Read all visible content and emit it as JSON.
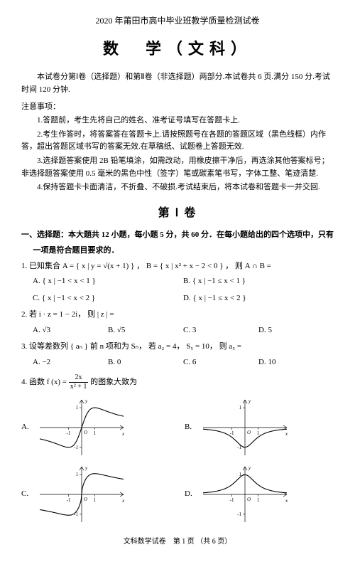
{
  "header": {
    "exam_title": "2020 年莆田市高中毕业班教学质量检测试卷",
    "subject": "数　学（文科）"
  },
  "intro": "本试卷分第Ⅰ卷（选择题）和第Ⅱ卷（非选择题）两部分.本试卷共 6 页.满分 150 分.考试时间 120 分钟.",
  "notice": {
    "title": "注意事项：",
    "items": [
      "1.答题前，考生先将自己的姓名、准考证号填写在答题卡上.",
      "2.考生作答时，将答案答在答题卡上.请按照题号在各题的答题区域（黑色线框）内作答，超出答题区域书写的答案无效.在草稿纸、试题卷上答题无效.",
      "3.选择题答案使用 2B 铅笔填涂，如需改动，用橡皮擦干净后，再选涂其他答案标号；非选择题答案使用 0.5 毫米的黑色中性（签字）笔或碳素笔书写，字体工整、笔迹清楚.",
      "4.保持答题卡卡面清洁，不折叠、不破损.考试结束后，将本试卷和答题卡一并交回."
    ]
  },
  "section1_title": "第 Ⅰ 卷",
  "part1": {
    "line1": "一、选择题：本大题共 12 小题，每小题 5 分，共 60 分．在每小题给出的四个选项中，只有",
    "line2": "一项是符合题目要求的．"
  },
  "q1": {
    "stem": "1. 已知集合 A = { x | y = √(x + 1) } ， B = { x | x² + x − 2 < 0 } ， 则 A ∩ B =",
    "opts": {
      "A": "A. { x | −1 < x < 1 }",
      "B": "B. { x | −1 ≤ x < 1 }",
      "C": "C. { x | −1 < x < 2 }",
      "D": "D. { x | −1 ≤ x < 2 }"
    }
  },
  "q2": {
    "stem": "2. 若 i · z = 1 − 2i， 则 | z | =",
    "opts": {
      "A": "A. √3",
      "B": "B. √5",
      "C": "C. 3",
      "D": "D. 5"
    }
  },
  "q3": {
    "stem": "3. 设等差数列 { aₙ } 前 n 项和为 Sₙ， 若 a₂ = 4， S₅ = 10， 则 a₅ =",
    "opts": {
      "A": "A. −2",
      "B": "B. 0",
      "C": "C. 6",
      "D": "D. 10"
    }
  },
  "q4": {
    "stem_prefix": "4. 函数 f (x) = ",
    "frac_num": "2x",
    "frac_den": "x² + 1",
    "stem_suffix": " 的图象大致为",
    "labels": {
      "A": "A.",
      "B": "B.",
      "C": "C.",
      "D": "D."
    }
  },
  "charts": {
    "width": 130,
    "height": 90,
    "axis_color": "#000000",
    "curve_color": "#000000",
    "background": "#ffffff",
    "xlim": [
      -3.2,
      3.2
    ],
    "ylim": [
      -1.4,
      1.4
    ],
    "x_ticks": [
      -1,
      1
    ],
    "y_ticks": [
      -1,
      1
    ],
    "origin_label": "O",
    "x_label": "x",
    "y_label": "y",
    "label_fontsize": 7,
    "A": {
      "type": "odd-smooth",
      "desc": "f(x)=2x/(x^2+1)"
    },
    "B": {
      "type": "even-dip",
      "desc": "even, negative at 0"
    },
    "C": {
      "type": "odd-sharp",
      "desc": "odd, local extrema outside [-1,1]"
    },
    "D": {
      "type": "even-bump",
      "desc": "even, positive at 0"
    }
  },
  "footer": "文科数学试卷　第 1 页 （共 6 页）"
}
